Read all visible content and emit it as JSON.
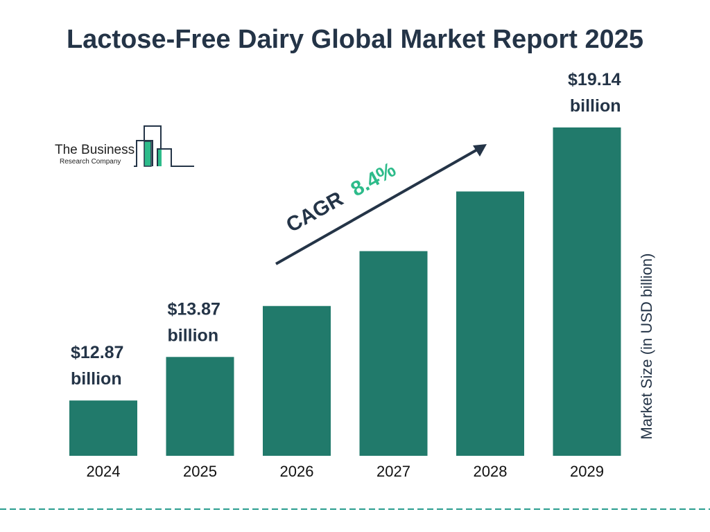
{
  "chart_data": {
    "type": "bar",
    "title": "Lactose-Free Dairy Global Market Report 2025",
    "ylabel": "Market Size (in USD billion)",
    "xlabel": "",
    "categories": [
      "2024",
      "2025",
      "2026",
      "2027",
      "2028",
      "2029"
    ],
    "values": [
      12.87,
      13.87,
      15.04,
      16.3,
      17.67,
      19.14
    ],
    "data_labels": [
      {
        "index": 0,
        "line1": "$12.87",
        "line2": "billion"
      },
      {
        "index": 1,
        "line1": "$13.87",
        "line2": "billion"
      },
      {
        "index": 5,
        "line1": "$19.14",
        "line2": "billion"
      }
    ],
    "ylim": [
      11.6,
      19.14
    ],
    "grid": false,
    "annotation": {
      "label": "CAGR",
      "value": "8.4%"
    },
    "colors": {
      "bar": "#217a6b",
      "text": "#243447",
      "accent": "#2dbb8a",
      "divider": "#2a9d8f"
    }
  },
  "logo": {
    "line1": "The Business",
    "line2": "Research Company"
  }
}
